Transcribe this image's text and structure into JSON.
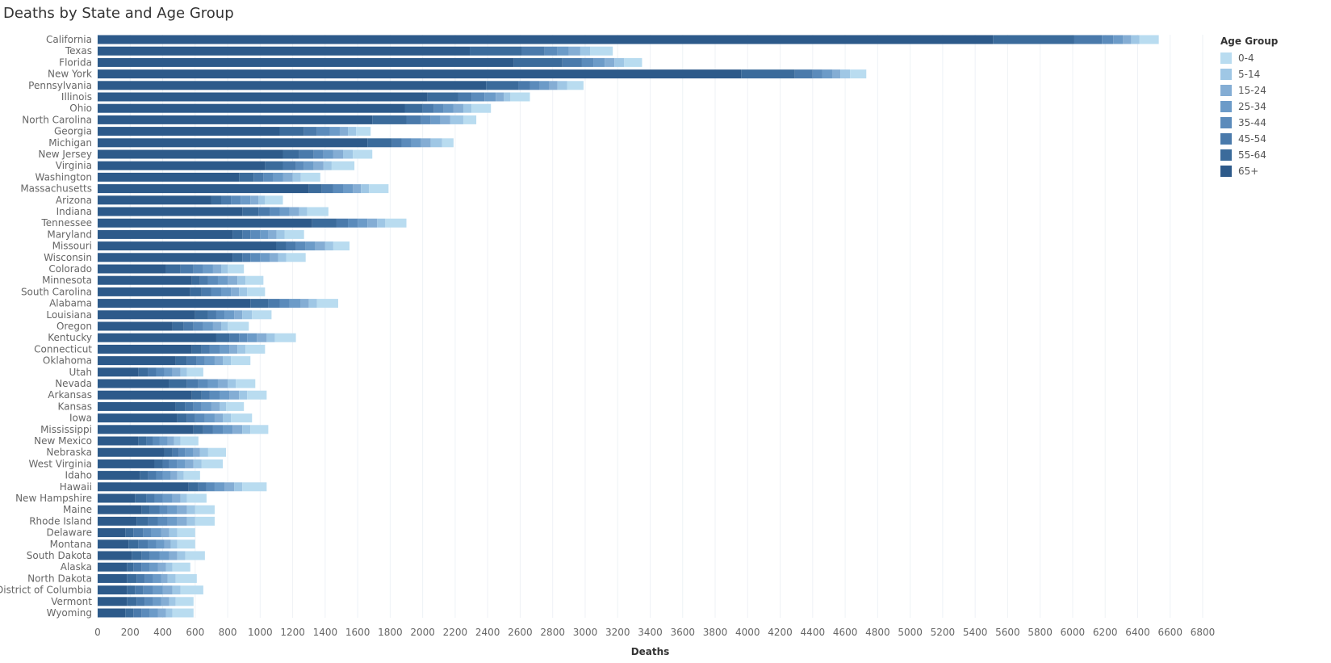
{
  "page": {
    "title": "Deaths by State and Age Group"
  },
  "chart_data": {
    "type": "bar",
    "orientation": "horizontal",
    "stacked": true,
    "title": "Deaths by State and Age Group",
    "xlabel": "Deaths",
    "ylabel": "",
    "xlim": [
      0,
      6800
    ],
    "x_ticks": [
      0,
      200,
      400,
      600,
      800,
      1000,
      1200,
      1400,
      1600,
      1800,
      2000,
      2200,
      2400,
      2600,
      2800,
      3000,
      3200,
      3400,
      3600,
      3800,
      4000,
      4200,
      4400,
      4600,
      4800,
      5000,
      5200,
      5400,
      5600,
      5800,
      6000,
      6200,
      6400,
      6600,
      6800
    ],
    "grid": "vertical",
    "legend_title": "Age Group",
    "legend_position": "right",
    "categories": [
      "California",
      "Texas",
      "Florida",
      "New York",
      "Pennsylvania",
      "Illinois",
      "Ohio",
      "North Carolina",
      "Georgia",
      "Michigan",
      "New Jersey",
      "Virginia",
      "Washington",
      "Massachusetts",
      "Arizona",
      "Indiana",
      "Tennessee",
      "Maryland",
      "Missouri",
      "Wisconsin",
      "Colorado",
      "Minnesota",
      "South Carolina",
      "Alabama",
      "Louisiana",
      "Oregon",
      "Kentucky",
      "Connecticut",
      "Oklahoma",
      "Utah",
      "Nevada",
      "Arkansas",
      "Kansas",
      "Iowa",
      "Mississippi",
      "New Mexico",
      "Nebraska",
      "West Virginia",
      "Idaho",
      "Hawaii",
      "New Hampshire",
      "Maine",
      "Rhode Island",
      "Delaware",
      "Montana",
      "South Dakota",
      "Alaska",
      "North Dakota",
      "District of Columbia",
      "Vermont",
      "Wyoming"
    ],
    "series": [
      {
        "name": "65+",
        "color": "#2d5a8a",
        "values": [
          5510,
          2290,
          2560,
          3960,
          2390,
          2030,
          1890,
          1690,
          1120,
          1660,
          1140,
          1030,
          870,
          1300,
          700,
          890,
          1320,
          830,
          1100,
          830,
          420,
          580,
          570,
          940,
          600,
          460,
          730,
          580,
          480,
          250,
          440,
          580,
          480,
          490,
          590,
          250,
          410,
          350,
          260,
          560,
          230,
          270,
          240,
          170,
          190,
          210,
          180,
          180,
          180,
          180,
          170
        ]
      },
      {
        "name": "55-64",
        "color": "#3b6b9b",
        "values": [
          500,
          320,
          300,
          330,
          200,
          190,
          110,
          210,
          150,
          150,
          100,
          110,
          90,
          80,
          60,
          100,
          150,
          60,
          60,
          60,
          90,
          50,
          70,
          110,
          80,
          70,
          80,
          60,
          70,
          60,
          110,
          60,
          60,
          60,
          60,
          50,
          50,
          50,
          50,
          60,
          70,
          50,
          70,
          50,
          60,
          60,
          40,
          60,
          50,
          60,
          50
        ]
      },
      {
        "name": "45-54",
        "color": "#4a7aab",
        "values": [
          170,
          140,
          120,
          110,
          70,
          80,
          70,
          90,
          80,
          60,
          90,
          80,
          60,
          70,
          60,
          70,
          70,
          50,
          60,
          50,
          80,
          50,
          60,
          70,
          50,
          60,
          60,
          50,
          60,
          50,
          70,
          50,
          50,
          50,
          60,
          40,
          40,
          40,
          50,
          50,
          50,
          60,
          60,
          60,
          60,
          50,
          50,
          50,
          50,
          50,
          50
        ]
      },
      {
        "name": "35-44",
        "color": "#5b8bbb",
        "values": [
          70,
          80,
          70,
          60,
          60,
          80,
          60,
          60,
          80,
          60,
          60,
          50,
          60,
          60,
          60,
          60,
          60,
          60,
          60,
          60,
          60,
          60,
          60,
          60,
          50,
          60,
          50,
          60,
          50,
          50,
          60,
          60,
          50,
          60,
          60,
          40,
          40,
          50,
          40,
          50,
          50,
          50,
          60,
          50,
          50,
          60,
          50,
          50,
          60,
          50,
          50
        ]
      },
      {
        "name": "25-34",
        "color": "#6c9bc8",
        "values": [
          60,
          70,
          70,
          60,
          60,
          70,
          60,
          60,
          60,
          60,
          60,
          60,
          60,
          60,
          60,
          60,
          60,
          50,
          60,
          60,
          60,
          60,
          60,
          70,
          60,
          60,
          60,
          60,
          60,
          50,
          60,
          60,
          60,
          60,
          60,
          50,
          50,
          50,
          50,
          60,
          60,
          60,
          60,
          60,
          50,
          60,
          50,
          50,
          60,
          50,
          50
        ]
      },
      {
        "name": "15-24",
        "color": "#84add4",
        "values": [
          50,
          70,
          60,
          50,
          50,
          50,
          60,
          60,
          50,
          60,
          60,
          60,
          60,
          50,
          50,
          60,
          60,
          50,
          60,
          50,
          50,
          60,
          50,
          50,
          50,
          50,
          60,
          50,
          50,
          50,
          60,
          60,
          50,
          50,
          60,
          40,
          40,
          50,
          40,
          60,
          50,
          60,
          60,
          50,
          40,
          50,
          50,
          40,
          60,
          50,
          50
        ]
      },
      {
        "name": "5-14",
        "color": "#9fc7e5",
        "values": [
          50,
          60,
          60,
          60,
          60,
          40,
          50,
          80,
          50,
          70,
          60,
          50,
          50,
          50,
          40,
          50,
          50,
          50,
          50,
          50,
          40,
          50,
          50,
          50,
          60,
          40,
          50,
          50,
          50,
          40,
          50,
          50,
          40,
          50,
          50,
          40,
          50,
          50,
          40,
          50,
          40,
          50,
          50,
          50,
          40,
          50,
          40,
          50,
          50,
          40,
          40
        ]
      },
      {
        "name": "0-4",
        "color": "#b9dcf0",
        "values": [
          120,
          140,
          110,
          100,
          100,
          120,
          120,
          80,
          90,
          70,
          120,
          140,
          120,
          120,
          110,
          130,
          130,
          120,
          100,
          120,
          100,
          110,
          110,
          130,
          120,
          130,
          130,
          120,
          120,
          100,
          120,
          120,
          110,
          130,
          110,
          110,
          110,
          130,
          100,
          150,
          120,
          120,
          120,
          110,
          110,
          120,
          110,
          130,
          140,
          110,
          130
        ]
      }
    ]
  }
}
